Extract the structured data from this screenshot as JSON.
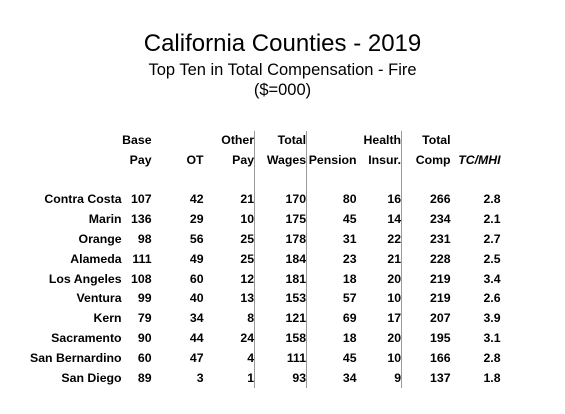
{
  "title": "California Counties - 2019",
  "subtitle": "Top Ten in Total Compensation - Fire",
  "units": "($=000)",
  "chart_data": {
    "type": "table",
    "title": "California Counties - 2019",
    "subtitle": "Top Ten in Total Compensation - Fire",
    "units": "($=000)",
    "header_top": [
      "Base",
      "",
      "Other",
      "Total",
      "",
      "Health",
      "Total",
      ""
    ],
    "header_bottom": [
      "Pay",
      "OT",
      "Pay",
      "Wages",
      "Pension",
      "Insur.",
      "Comp",
      "TC/MHI"
    ],
    "rows": [
      {
        "county": "Contra Costa",
        "values": [
          "107",
          "42",
          "21",
          "170",
          "80",
          "16",
          "266",
          "2.8"
        ]
      },
      {
        "county": "Marin",
        "values": [
          "136",
          "29",
          "10",
          "175",
          "45",
          "14",
          "234",
          "2.1"
        ]
      },
      {
        "county": "Orange",
        "values": [
          "98",
          "56",
          "25",
          "178",
          "31",
          "22",
          "231",
          "2.7"
        ]
      },
      {
        "county": "Alameda",
        "values": [
          "111",
          "49",
          "25",
          "184",
          "23",
          "21",
          "228",
          "2.5"
        ]
      },
      {
        "county": "Los Angeles",
        "values": [
          "108",
          "60",
          "12",
          "181",
          "18",
          "20",
          "219",
          "3.4"
        ]
      },
      {
        "county": "Ventura",
        "values": [
          "99",
          "40",
          "13",
          "153",
          "57",
          "10",
          "219",
          "2.6"
        ]
      },
      {
        "county": "Kern",
        "values": [
          "79",
          "34",
          "8",
          "121",
          "69",
          "17",
          "207",
          "3.9"
        ]
      },
      {
        "county": "Sacramento",
        "values": [
          "90",
          "44",
          "24",
          "158",
          "18",
          "20",
          "195",
          "3.1"
        ]
      },
      {
        "county": "San Bernardino",
        "values": [
          "60",
          "47",
          "4",
          "111",
          "45",
          "10",
          "166",
          "2.8"
        ]
      },
      {
        "county": "San Diego",
        "values": [
          "89",
          "3",
          "1",
          "93",
          "34",
          "9",
          "137",
          "1.8"
        ]
      }
    ]
  }
}
